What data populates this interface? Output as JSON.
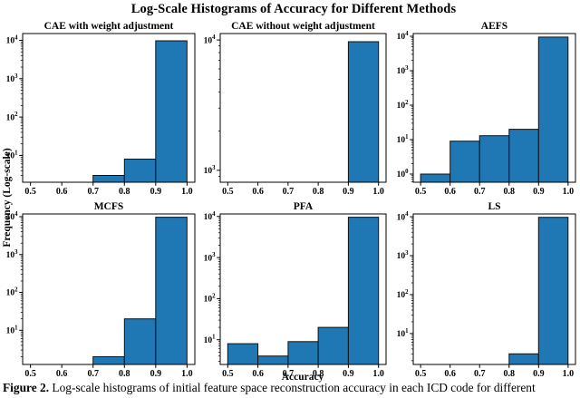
{
  "figure": {
    "title": "Log-Scale Histograms of Accuracy for Different Methods",
    "ylabel": "Frequency (Log-scale)",
    "xlabel": "Accuracy",
    "caption_label": "Figure 2.",
    "caption_text": " Log-scale histograms of initial feature space reconstruction accuracy in each ICD code for different",
    "bar_color": "#1f77b4",
    "bar_edge_color": "#111111",
    "axis_color": "#000000"
  },
  "chart_data": [
    {
      "type": "bar",
      "title": "CAE with weight adjustment",
      "bin_edges": [
        0.5,
        0.6,
        0.7,
        0.8,
        0.9,
        1.0
      ],
      "counts": [
        0,
        0,
        3,
        8,
        9700
      ],
      "x_ticks": [
        "0.5",
        "0.6",
        "0.7",
        "0.8",
        "0.9",
        "1.0"
      ],
      "ytick_exponents": [
        1,
        2,
        3,
        4
      ],
      "xlim": [
        0.475,
        1.025
      ],
      "ylim": [
        2.0,
        15000
      ],
      "yscale": "log",
      "grid": false
    },
    {
      "type": "bar",
      "title": "CAE without weight adjustment",
      "bin_edges": [
        0.5,
        0.6,
        0.7,
        0.8,
        0.9,
        1.0
      ],
      "counts": [
        0,
        0,
        0,
        0,
        9700
      ],
      "x_ticks": [
        "0.5",
        "0.6",
        "0.7",
        "0.8",
        "0.9",
        "1.0"
      ],
      "ytick_exponents": [
        3,
        4
      ],
      "xlim": [
        0.475,
        1.025
      ],
      "ylim": [
        810,
        11200
      ],
      "yscale": "log",
      "grid": false
    },
    {
      "type": "bar",
      "title": "AEFS",
      "bin_edges": [
        0.5,
        0.6,
        0.7,
        0.8,
        0.9,
        1.0
      ],
      "counts": [
        1,
        9,
        13,
        20,
        9500
      ],
      "x_ticks": [
        "0.5",
        "0.6",
        "0.7",
        "0.8",
        "0.9",
        "1.0"
      ],
      "ytick_exponents": [
        0,
        1,
        2,
        3,
        4
      ],
      "xlim": [
        0.475,
        1.025
      ],
      "ylim": [
        0.58,
        12000
      ],
      "yscale": "log",
      "grid": false
    },
    {
      "type": "bar",
      "title": "MCFS",
      "bin_edges": [
        0.5,
        0.6,
        0.7,
        0.8,
        0.9,
        1.0
      ],
      "counts": [
        0,
        0,
        2,
        20,
        9700
      ],
      "x_ticks": [
        "0.5",
        "0.6",
        "0.7",
        "0.8",
        "0.9",
        "1.0"
      ],
      "ytick_exponents": [
        1,
        2,
        3,
        4
      ],
      "xlim": [
        0.475,
        1.025
      ],
      "ylim": [
        1.25,
        11800
      ],
      "yscale": "log",
      "grid": false
    },
    {
      "type": "bar",
      "title": "PFA",
      "bin_edges": [
        0.5,
        0.6,
        0.7,
        0.8,
        0.9,
        1.0
      ],
      "counts": [
        8,
        4,
        9,
        20,
        9600
      ],
      "x_ticks": [
        "0.5",
        "0.6",
        "0.7",
        "0.8",
        "0.9",
        "1.0"
      ],
      "ytick_exponents": [
        1,
        2,
        3,
        4
      ],
      "xlim": [
        0.475,
        1.025
      ],
      "ylim": [
        2.5,
        11500
      ],
      "yscale": "log",
      "grid": false
    },
    {
      "type": "bar",
      "title": "LS",
      "bin_edges": [
        0.5,
        0.6,
        0.7,
        0.8,
        0.9,
        1.0
      ],
      "counts": [
        0,
        0,
        0,
        3,
        9700
      ],
      "x_ticks": [
        "0.5",
        "0.6",
        "0.7",
        "0.8",
        "0.9",
        "1.0"
      ],
      "ytick_exponents": [
        1,
        2,
        3,
        4
      ],
      "xlim": [
        0.475,
        1.025
      ],
      "ylim": [
        1.6,
        11800
      ],
      "yscale": "log",
      "grid": false
    }
  ]
}
